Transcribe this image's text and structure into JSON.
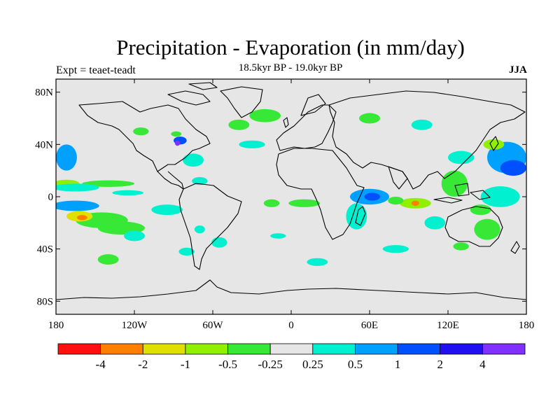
{
  "title": "Precipitation - Evaporation (in mm/day)",
  "subtitle": "18.5kyr BP - 19.0kyr BP",
  "experiment": "Expt = teaet-teadt",
  "season": "JJA",
  "chart_data": {
    "type": "heatmap",
    "projection": "equirectangular",
    "units": "mm/day",
    "x_range": [
      -180,
      180
    ],
    "y_range": [
      -90,
      90
    ],
    "x_ticks": [
      {
        "value": -180,
        "label": "180"
      },
      {
        "value": -120,
        "label": "120W"
      },
      {
        "value": -60,
        "label": "60W"
      },
      {
        "value": 0,
        "label": "0"
      },
      {
        "value": 60,
        "label": "60E"
      },
      {
        "value": 120,
        "label": "120E"
      },
      {
        "value": 180,
        "label": "180"
      }
    ],
    "y_ticks": [
      {
        "value": 80,
        "label": "80N"
      },
      {
        "value": 40,
        "label": "40N"
      },
      {
        "value": 0,
        "label": "0"
      },
      {
        "value": -40,
        "label": "40S"
      },
      {
        "value": -80,
        "label": "80S"
      }
    ],
    "colorbar": {
      "colors": [
        "#ff0f0f",
        "#ff8000",
        "#e0e000",
        "#90f000",
        "#37e837",
        "#e6e6e6",
        "#00f0d0",
        "#00a0ff",
        "#0050ff",
        "#2010f0",
        "#8030ff"
      ],
      "labels": [
        "-4",
        "-2",
        "-1",
        "-0.5",
        "-0.25",
        "0.25",
        "0.5",
        "1",
        "2",
        "4"
      ]
    },
    "patches": [
      {
        "lon": 165,
        "lat": 30,
        "rx": 15,
        "ry": 12,
        "level": 7
      },
      {
        "lon": 170,
        "lat": 22,
        "rx": 10,
        "ry": 6,
        "level": 8
      },
      {
        "lon": -172,
        "lat": 30,
        "rx": 8,
        "ry": 10,
        "level": 7
      },
      {
        "lon": -172,
        "lat": 10,
        "rx": 10,
        "ry": 3,
        "level": 3
      },
      {
        "lon": -140,
        "lat": 10,
        "rx": 20,
        "ry": 2.5,
        "level": 4
      },
      {
        "lon": -165,
        "lat": 7,
        "rx": 18,
        "ry": 3,
        "level": 6
      },
      {
        "lon": -165,
        "lat": -7,
        "rx": 18,
        "ry": 4,
        "level": 7
      },
      {
        "lon": -145,
        "lat": -18,
        "rx": 20,
        "ry": 6,
        "level": 4
      },
      {
        "lon": -130,
        "lat": -24,
        "rx": 18,
        "ry": 5,
        "level": 4
      },
      {
        "lon": -162,
        "lat": -15,
        "rx": 10,
        "ry": 4,
        "level": 2
      },
      {
        "lon": -160,
        "lat": -16,
        "rx": 4,
        "ry": 2,
        "level": 1
      },
      {
        "lon": -140,
        "lat": -48,
        "rx": 8,
        "ry": 4,
        "level": 4
      },
      {
        "lon": -120,
        "lat": -30,
        "rx": 8,
        "ry": 4,
        "level": 6
      },
      {
        "lon": -95,
        "lat": -10,
        "rx": 12,
        "ry": 4,
        "level": 6
      },
      {
        "lon": -125,
        "lat": 3,
        "rx": 12,
        "ry": 2,
        "level": 6
      },
      {
        "lon": -85,
        "lat": 43,
        "rx": 5,
        "ry": 3,
        "level": 8
      },
      {
        "lon": -87,
        "lat": 41,
        "rx": 2,
        "ry": 2,
        "level": 10
      },
      {
        "lon": -88,
        "lat": 48,
        "rx": 4,
        "ry": 2,
        "level": 4
      },
      {
        "lon": -115,
        "lat": 50,
        "rx": 6,
        "ry": 3,
        "level": 4
      },
      {
        "lon": -75,
        "lat": 28,
        "rx": 8,
        "ry": 5,
        "level": 6
      },
      {
        "lon": -70,
        "lat": 12,
        "rx": 6,
        "ry": 3,
        "level": 6
      },
      {
        "lon": -70,
        "lat": -25,
        "rx": 4,
        "ry": 3,
        "level": 6
      },
      {
        "lon": -55,
        "lat": -35,
        "rx": 6,
        "ry": 4,
        "level": 6
      },
      {
        "lon": -80,
        "lat": -42,
        "rx": 6,
        "ry": 3,
        "level": 6
      },
      {
        "lon": -40,
        "lat": 55,
        "rx": 8,
        "ry": 4,
        "level": 4
      },
      {
        "lon": -20,
        "lat": 62,
        "rx": 12,
        "ry": 5,
        "level": 4
      },
      {
        "lon": -30,
        "lat": 40,
        "rx": 10,
        "ry": 3,
        "level": 6
      },
      {
        "lon": -15,
        "lat": -5,
        "rx": 6,
        "ry": 3,
        "level": 4
      },
      {
        "lon": 10,
        "lat": -5,
        "rx": 12,
        "ry": 3,
        "level": 4
      },
      {
        "lon": -10,
        "lat": -30,
        "rx": 6,
        "ry": 2,
        "level": 6
      },
      {
        "lon": 20,
        "lat": -50,
        "rx": 8,
        "ry": 3,
        "level": 6
      },
      {
        "lon": 60,
        "lat": 0,
        "rx": 15,
        "ry": 6,
        "level": 7
      },
      {
        "lon": 62,
        "lat": 0,
        "rx": 6,
        "ry": 3,
        "level": 8
      },
      {
        "lon": 95,
        "lat": -5,
        "rx": 12,
        "ry": 4,
        "level": 3
      },
      {
        "lon": 95,
        "lat": -5,
        "rx": 3,
        "ry": 2,
        "level": 1
      },
      {
        "lon": 80,
        "lat": -3,
        "rx": 6,
        "ry": 3,
        "level": 4
      },
      {
        "lon": 50,
        "lat": -15,
        "rx": 8,
        "ry": 10,
        "level": 6
      },
      {
        "lon": 125,
        "lat": 10,
        "rx": 10,
        "ry": 10,
        "level": 4
      },
      {
        "lon": 130,
        "lat": 30,
        "rx": 10,
        "ry": 5,
        "level": 6
      },
      {
        "lon": 155,
        "lat": 40,
        "rx": 8,
        "ry": 4,
        "level": 3
      },
      {
        "lon": 160,
        "lat": 0,
        "rx": 15,
        "ry": 8,
        "level": 6
      },
      {
        "lon": 150,
        "lat": -25,
        "rx": 10,
        "ry": 8,
        "level": 4
      },
      {
        "lon": 145,
        "lat": -10,
        "rx": 8,
        "ry": 4,
        "level": 4
      },
      {
        "lon": 110,
        "lat": -20,
        "rx": 8,
        "ry": 5,
        "level": 6
      },
      {
        "lon": 130,
        "lat": -38,
        "rx": 6,
        "ry": 3,
        "level": 4
      },
      {
        "lon": 100,
        "lat": 55,
        "rx": 8,
        "ry": 4,
        "level": 6
      },
      {
        "lon": 60,
        "lat": 60,
        "rx": 8,
        "ry": 4,
        "level": 4
      },
      {
        "lon": 80,
        "lat": -40,
        "rx": 10,
        "ry": 3,
        "level": 6
      }
    ]
  }
}
